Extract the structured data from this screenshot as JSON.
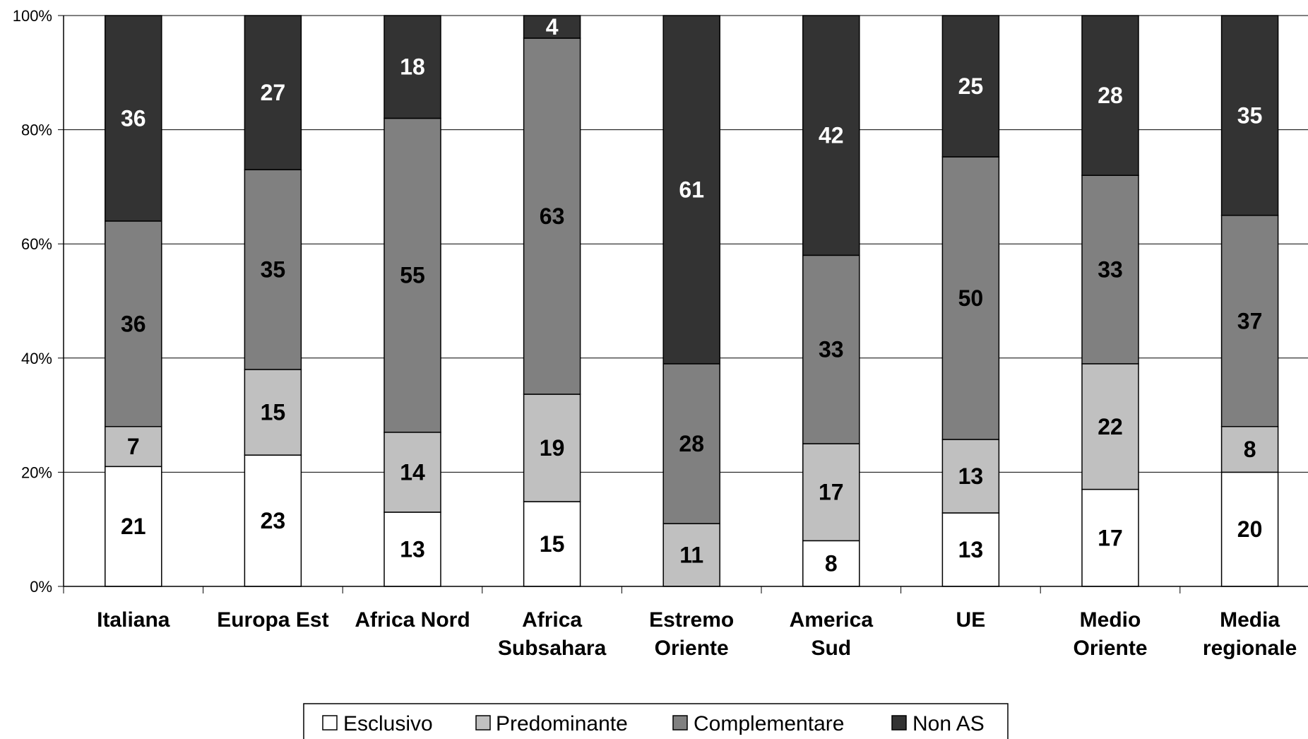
{
  "chart_data": {
    "type": "bar",
    "stacked": true,
    "percent": true,
    "categories": [
      [
        "Italiana"
      ],
      [
        "Europa Est"
      ],
      [
        "Africa Nord"
      ],
      [
        "Africa",
        "Subsahara"
      ],
      [
        "Estremo",
        "Oriente"
      ],
      [
        "America",
        "Sud"
      ],
      [
        "UE"
      ],
      [
        "Medio",
        "Oriente"
      ],
      [
        "Media",
        "regionale"
      ]
    ],
    "series": [
      {
        "name": "Esclusivo",
        "color": "#ffffff",
        "label_color": "#000000",
        "values": [
          21,
          23,
          13,
          15,
          0,
          8,
          13,
          17,
          20
        ]
      },
      {
        "name": "Predominante",
        "color": "#c0c0c0",
        "label_color": "#000000",
        "values": [
          7,
          15,
          14,
          19,
          11,
          17,
          13,
          22,
          8
        ]
      },
      {
        "name": "Complementare",
        "color": "#808080",
        "label_color": "#000000",
        "values": [
          36,
          35,
          55,
          63,
          28,
          33,
          50,
          33,
          37
        ]
      },
      {
        "name": "Non AS",
        "color": "#333333",
        "label_color": "#ffffff",
        "values": [
          36,
          27,
          18,
          4,
          61,
          42,
          25,
          28,
          35
        ]
      }
    ],
    "ylim": [
      0,
      100
    ],
    "yticks": [
      "0%",
      "20%",
      "40%",
      "60%",
      "80%",
      "100%"
    ],
    "grid": true,
    "legend_position": "bottom"
  }
}
